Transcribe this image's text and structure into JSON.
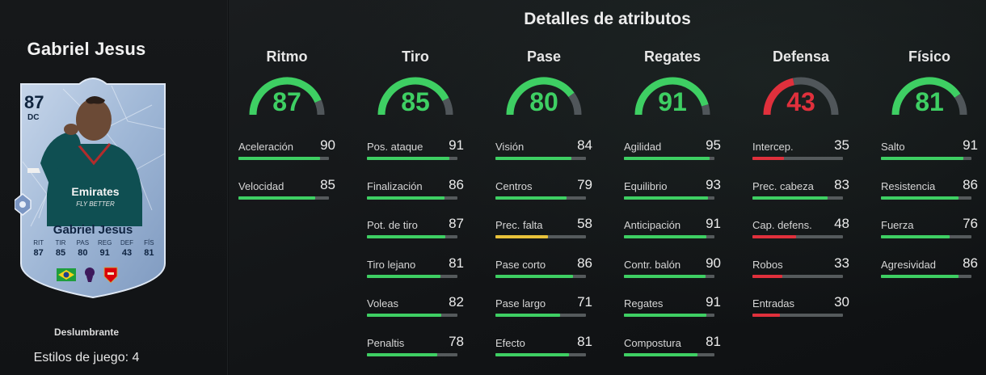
{
  "player": {
    "name": "Gabriel Jesus",
    "card": {
      "rating": "87",
      "position": "DC",
      "name": "Gabriel Jesus",
      "sponsor": "Emirates FLY BETTER",
      "stat_labels": [
        "RIT",
        "TIR",
        "PAS",
        "REG",
        "DEF",
        "FÍS"
      ],
      "stat_values": [
        "87",
        "85",
        "80",
        "91",
        "43",
        "81"
      ]
    },
    "playstyle": "Deslumbrante",
    "playstyles_count": "Estilos de juego: 4"
  },
  "colors": {
    "green": "#3ecf63",
    "yellow": "#e8c23a",
    "red": "#e0303c",
    "track": "#555a5c"
  },
  "section_title": "Detalles de atributos",
  "categories": [
    {
      "title": "Ritmo",
      "value": 87,
      "color": "green",
      "attrs": [
        {
          "name": "Aceleración",
          "value": 90
        },
        {
          "name": "Velocidad",
          "value": 85
        }
      ]
    },
    {
      "title": "Tiro",
      "value": 85,
      "color": "green",
      "attrs": [
        {
          "name": "Pos. ataque",
          "value": 91
        },
        {
          "name": "Finalización",
          "value": 86
        },
        {
          "name": "Pot. de tiro",
          "value": 87
        },
        {
          "name": "Tiro lejano",
          "value": 81
        },
        {
          "name": "Voleas",
          "value": 82
        },
        {
          "name": "Penaltis",
          "value": 78
        }
      ]
    },
    {
      "title": "Pase",
      "value": 80,
      "color": "green",
      "attrs": [
        {
          "name": "Visión",
          "value": 84
        },
        {
          "name": "Centros",
          "value": 79
        },
        {
          "name": "Prec. falta",
          "value": 58
        },
        {
          "name": "Pase corto",
          "value": 86
        },
        {
          "name": "Pase largo",
          "value": 71
        },
        {
          "name": "Efecto",
          "value": 81
        }
      ]
    },
    {
      "title": "Regates",
      "value": 91,
      "color": "green",
      "attrs": [
        {
          "name": "Agilidad",
          "value": 95
        },
        {
          "name": "Equilibrio",
          "value": 93
        },
        {
          "name": "Anticipación",
          "value": 91
        },
        {
          "name": "Contr. balón",
          "value": 90
        },
        {
          "name": "Regates",
          "value": 91
        },
        {
          "name": "Compostura",
          "value": 81
        }
      ]
    },
    {
      "title": "Defensa",
      "value": 43,
      "color": "red",
      "attrs": [
        {
          "name": "Intercep.",
          "value": 35
        },
        {
          "name": "Prec. cabeza",
          "value": 83
        },
        {
          "name": "Cap. defens.",
          "value": 48
        },
        {
          "name": "Robos",
          "value": 33
        },
        {
          "name": "Entradas",
          "value": 30
        }
      ]
    },
    {
      "title": "Físico",
      "value": 81,
      "color": "green",
      "attrs": [
        {
          "name": "Salto",
          "value": 91
        },
        {
          "name": "Resistencia",
          "value": 86
        },
        {
          "name": "Fuerza",
          "value": 76
        },
        {
          "name": "Agresividad",
          "value": 86
        }
      ]
    }
  ]
}
